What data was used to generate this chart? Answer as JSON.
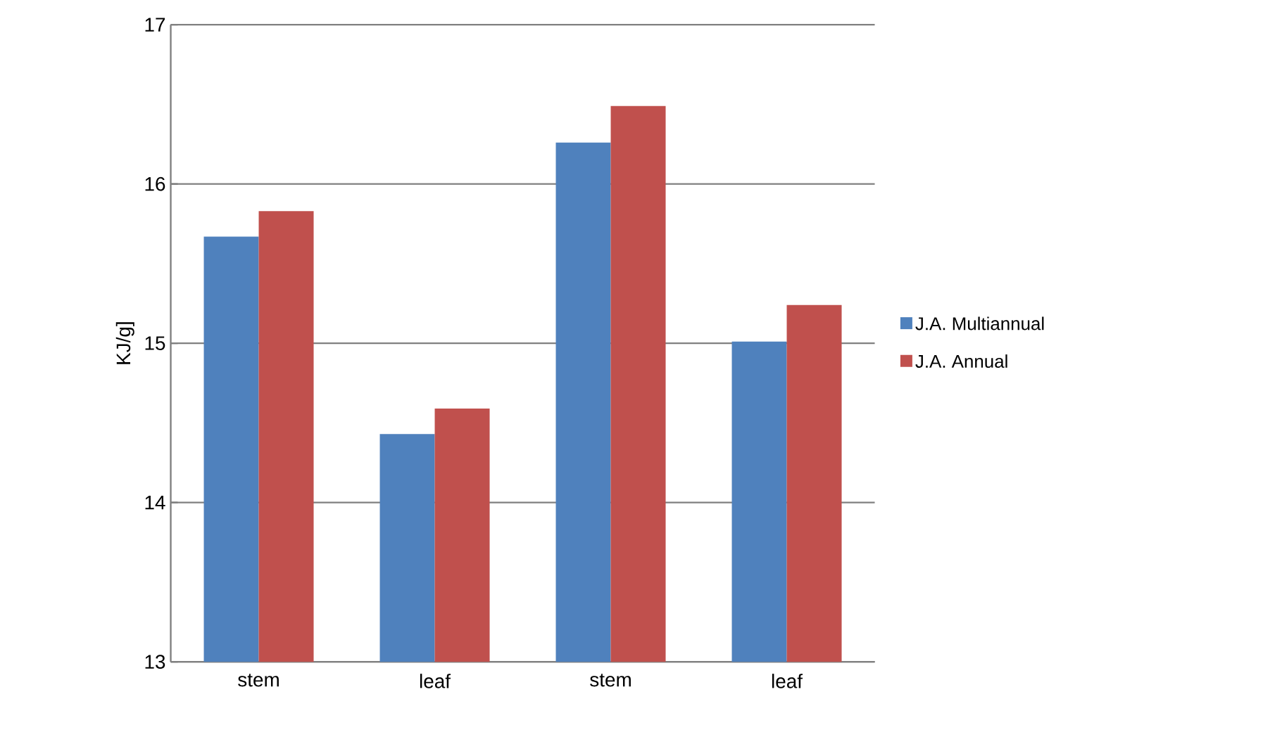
{
  "chart_data": {
    "type": "bar",
    "ylabel": "KJ/g]",
    "categories": [
      "stem",
      "leaf",
      "stem",
      "leaf"
    ],
    "series": [
      {
        "name": "J.A. Multiannual",
        "color": "#4f81bd",
        "values": [
          15.67,
          14.43,
          16.26,
          15.01
        ]
      },
      {
        "name": "J.A. Annual",
        "color": "#c0504d",
        "values": [
          15.83,
          14.59,
          16.49,
          15.24
        ]
      }
    ],
    "ylim": [
      13,
      17
    ],
    "yticks": [
      13,
      14,
      15,
      16,
      17
    ],
    "grid": "y",
    "legend": "right"
  }
}
